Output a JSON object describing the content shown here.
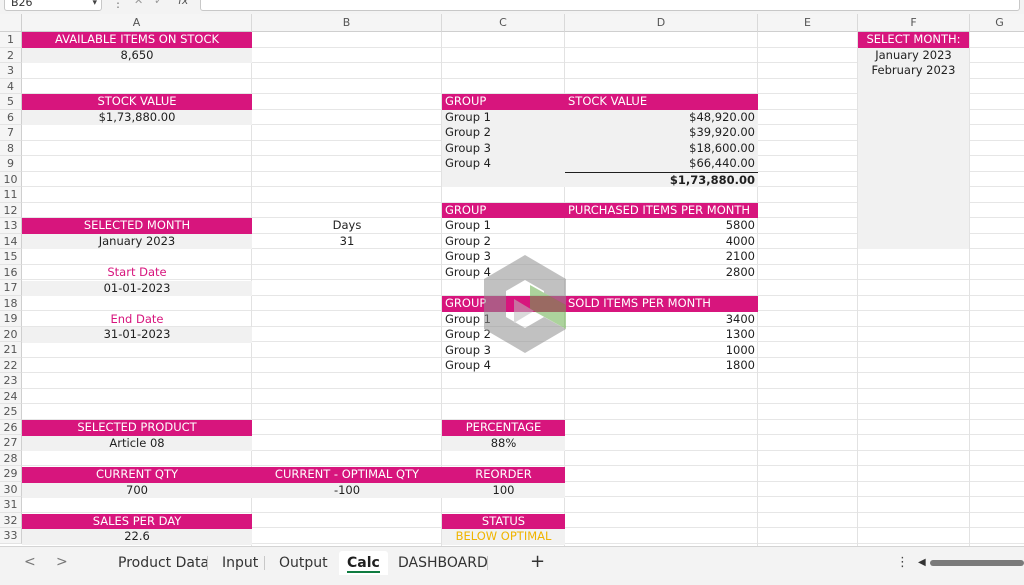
{
  "formula_bar": {
    "name_box": "B26",
    "fx_label": "fx"
  },
  "columns": [
    "A",
    "B",
    "C",
    "D",
    "E",
    "F",
    "G"
  ],
  "rows": [
    "1",
    "2",
    "3",
    "4",
    "5",
    "6",
    "7",
    "8",
    "9",
    "10",
    "11",
    "12",
    "13",
    "14",
    "15",
    "16",
    "17",
    "18",
    "19",
    "20",
    "21",
    "22",
    "23",
    "24",
    "25",
    "26",
    "27",
    "28",
    "29",
    "30",
    "31",
    "32",
    "33"
  ],
  "cells": {
    "available_items_label": "AVAILABLE ITEMS ON STOCK",
    "available_items_value": "8,650",
    "stock_value_label": "STOCK VALUE",
    "stock_value_value": "$1,73,880.00",
    "selected_month_label": "SELECTED MONTH",
    "selected_month_value": "January 2023",
    "days_label": "Days",
    "days_value": "31",
    "start_date_label": "Start Date",
    "start_date_value": "01-01-2023",
    "end_date_label": "End Date",
    "end_date_value": "31-01-2023",
    "selected_product_label": "SELECTED PRODUCT",
    "selected_product_value": "Article 08",
    "percentage_label": "PERCENTAGE",
    "percentage_value": "88%",
    "current_qty_label": "CURRENT QTY",
    "current_qty_value": "700",
    "current_optimal_label": "CURRENT - OPTIMAL QTY",
    "current_optimal_value": "-100",
    "reorder_label": "REORDER",
    "reorder_value": "100",
    "sales_per_day_label": "SALES PER DAY",
    "sales_per_day_value": "22.6",
    "status_label": "STATUS",
    "status_value": "BELOW OPTIMAL",
    "select_month_label": "SELECT MONTH:",
    "select_month_options": [
      "January 2023",
      "February 2023"
    ]
  },
  "stock_table": {
    "group_header": "GROUP",
    "value_header": "STOCK VALUE",
    "rows": [
      {
        "group": "Group 1",
        "value": "$48,920.00"
      },
      {
        "group": "Group 2",
        "value": "$39,920.00"
      },
      {
        "group": "Group 3",
        "value": "$18,600.00"
      },
      {
        "group": "Group 4",
        "value": "$66,440.00"
      }
    ],
    "total": "$1,73,880.00"
  },
  "purchased_table": {
    "group_header": "GROUP",
    "value_header": "PURCHASED ITEMS PER MONTH",
    "rows": [
      {
        "group": "Group 1",
        "value": "5800"
      },
      {
        "group": "Group 2",
        "value": "4000"
      },
      {
        "group": "Group 3",
        "value": "2100"
      },
      {
        "group": "Group 4",
        "value": "2800"
      }
    ]
  },
  "sold_table": {
    "group_header": "GROUP",
    "value_header": "SOLD ITEMS PER MONTH",
    "rows": [
      {
        "group": "Group 1",
        "value": "3400"
      },
      {
        "group": "Group 2",
        "value": "1300"
      },
      {
        "group": "Group 3",
        "value": "1000"
      },
      {
        "group": "Group 4",
        "value": "1800"
      }
    ]
  },
  "sheet_tabs": {
    "tabs": [
      "Product Data",
      "Input",
      "Output",
      "Calc",
      "DASHBOARD"
    ],
    "active": "Calc",
    "add_label": "+",
    "prev_label": "<",
    "next_label": ">"
  },
  "colors": {
    "header_fill": "#d7157d",
    "accent_green": "#107c41",
    "status_text": "#f0b400"
  }
}
